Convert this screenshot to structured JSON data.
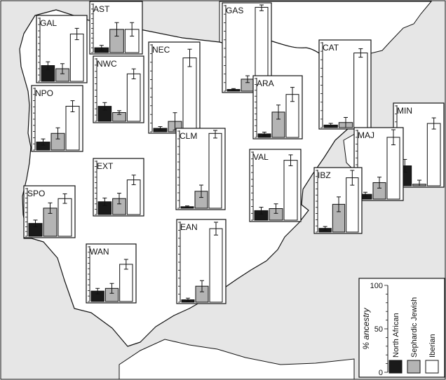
{
  "chart_data": {
    "type": "bar",
    "ylabel": "% ancestry",
    "ylim": [
      0,
      100
    ],
    "yticks": [
      "0",
      "50",
      "100"
    ],
    "series_names": [
      "North African",
      "Sephardic Jewish",
      "Iberian"
    ],
    "colors": {
      "North African": "#1a1a1a",
      "Sephardic Jewish": "#b4b4b4",
      "Iberian": "#ffffff",
      "sea": "#e6e6e6",
      "land": "#ffffff",
      "outline": "#111111"
    },
    "grid": false,
    "legend": "bottom-right",
    "regions": [
      {
        "label": "GAL",
        "values": [
          25,
          20,
          75
        ],
        "errors": [
          6,
          8,
          9
        ]
      },
      {
        "label": "AST",
        "values": [
          10,
          48,
          48
        ],
        "errors": [
          5,
          14,
          14
        ]
      },
      {
        "label": "GAS",
        "values": [
          2,
          14,
          98
        ],
        "errors": [
          1,
          4,
          4
        ]
      },
      {
        "label": "NWC",
        "values": [
          24,
          14,
          76
        ],
        "errors": [
          6,
          3,
          8
        ]
      },
      {
        "label": "NEC",
        "values": [
          4,
          12,
          85
        ],
        "errors": [
          2,
          10,
          10
        ]
      },
      {
        "label": "CAT",
        "values": [
          3,
          6,
          88
        ],
        "errors": [
          2,
          6,
          5
        ]
      },
      {
        "label": "NPO",
        "values": [
          13,
          27,
          71
        ],
        "errors": [
          5,
          9,
          9
        ]
      },
      {
        "label": "ARA",
        "values": [
          6,
          43,
          73
        ],
        "errors": [
          3,
          12,
          12
        ]
      },
      {
        "label": "MIN",
        "values": [
          25,
          2,
          78
        ],
        "errors": [
          8,
          5,
          7
        ]
      },
      {
        "label": "CLM",
        "values": [
          2,
          22,
          97
        ],
        "errors": [
          1,
          8,
          6
        ]
      },
      {
        "label": "MAJ",
        "values": [
          7,
          24,
          90
        ],
        "errors": [
          3,
          8,
          11
        ]
      },
      {
        "label": "EXT",
        "values": [
          24,
          30,
          65
        ],
        "errors": [
          7,
          10,
          9
        ]
      },
      {
        "label": "VAL",
        "values": [
          14,
          17,
          88
        ],
        "errors": [
          5,
          7,
          8
        ]
      },
      {
        "label": "SPO",
        "values": [
          27,
          59,
          79
        ],
        "errors": [
          7,
          11,
          10
        ]
      },
      {
        "label": "IBZ",
        "values": [
          6,
          45,
          88
        ],
        "errors": [
          3,
          12,
          12
        ]
      },
      {
        "label": "EAN",
        "values": [
          3,
          20,
          92
        ],
        "errors": [
          2,
          7,
          8
        ]
      },
      {
        "label": "WAN",
        "values": [
          19,
          24,
          68
        ],
        "errors": [
          5,
          9,
          9
        ]
      }
    ]
  }
}
